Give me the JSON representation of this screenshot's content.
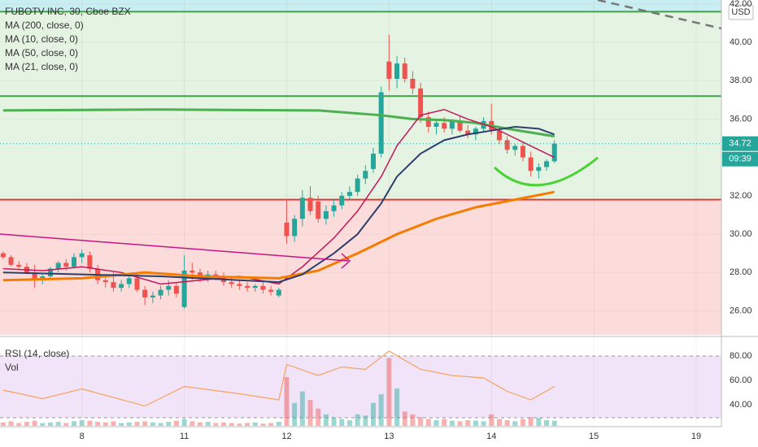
{
  "chart_data": {
    "type": "candlestick",
    "title": "FUBOTV INC, 30, Cboe BZX",
    "currency": "USD",
    "open": [
      29.0,
      28.8,
      28.4,
      28.3,
      28.0,
      27.6,
      27.8,
      28.2,
      28.5,
      28.3,
      28.8,
      28.9,
      28.2,
      27.6,
      27.5,
      27.2,
      27.4,
      27.7,
      27.1,
      26.7,
      26.8,
      27.1,
      27.3,
      26.2,
      28.1,
      28.0,
      27.7,
      27.9,
      27.8,
      27.5,
      27.4,
      27.3,
      27.2,
      27.3,
      27.1,
      26.8,
      30.6,
      29.9,
      30.8,
      31.9,
      31.7,
      30.8,
      31.2,
      31.5,
      32.0,
      32.2,
      32.9,
      33.4,
      34.2,
      39.0,
      38.1,
      38.9,
      38.1,
      37.6,
      36.1,
      35.6,
      35.8,
      35.5,
      35.9,
      35.4,
      35.2,
      35.5,
      35.9,
      35.4,
      34.9,
      34.4,
      34.6,
      34.0,
      33.3,
      33.5,
      33.8
    ],
    "high": [
      29.1,
      28.9,
      28.6,
      28.5,
      28.4,
      27.9,
      28.3,
      28.6,
      28.7,
      29.0,
      29.2,
      29.1,
      28.4,
      27.9,
      28.0,
      27.6,
      27.9,
      27.9,
      27.3,
      27.0,
      27.3,
      27.6,
      27.5,
      28.9,
      28.5,
      28.2,
      28.1,
      28.1,
      28.0,
      27.7,
      27.6,
      27.5,
      27.4,
      27.5,
      27.3,
      27.2,
      31.8,
      31.0,
      32.3,
      32.5,
      32.0,
      31.5,
      31.8,
      32.2,
      32.5,
      33.1,
      33.6,
      34.5,
      37.7,
      40.4,
      39.3,
      39.2,
      38.5,
      37.9,
      36.4,
      36.0,
      36.1,
      36.0,
      36.2,
      35.7,
      35.6,
      36.1,
      36.8,
      35.6,
      35.1,
      34.7,
      34.8,
      34.3,
      33.7,
      33.9,
      34.9
    ],
    "low": [
      28.7,
      28.3,
      28.2,
      27.9,
      27.2,
      27.4,
      27.7,
      28.0,
      28.1,
      28.2,
      28.5,
      28.0,
      27.4,
      27.2,
      27.0,
      27.0,
      27.2,
      27.0,
      26.3,
      26.4,
      26.6,
      26.8,
      26.7,
      26.1,
      27.6,
      27.5,
      27.5,
      27.6,
      27.3,
      27.2,
      27.1,
      27.0,
      27.0,
      26.9,
      26.8,
      26.7,
      29.5,
      29.6,
      30.4,
      31.0,
      30.6,
      30.5,
      30.9,
      31.3,
      31.8,
      32.0,
      32.6,
      33.2,
      34.0,
      37.5,
      37.6,
      37.9,
      37.3,
      35.8,
      35.3,
      35.2,
      35.3,
      35.2,
      35.3,
      35.0,
      34.9,
      35.3,
      35.2,
      34.7,
      34.2,
      34.1,
      33.8,
      33.0,
      32.9,
      33.3,
      33.7
    ],
    "close": [
      28.8,
      28.4,
      28.3,
      28.0,
      27.6,
      27.8,
      28.2,
      28.5,
      28.3,
      28.8,
      29.0,
      28.2,
      27.6,
      27.5,
      27.2,
      27.4,
      27.7,
      27.1,
      26.7,
      26.8,
      27.1,
      27.3,
      26.9,
      28.1,
      28.0,
      27.7,
      27.9,
      27.8,
      27.5,
      27.4,
      27.3,
      27.2,
      27.3,
      27.1,
      27.0,
      27.1,
      29.9,
      30.8,
      31.9,
      31.2,
      30.8,
      31.2,
      31.5,
      32.0,
      32.2,
      32.9,
      33.3,
      34.2,
      37.4,
      38.1,
      38.9,
      38.1,
      37.6,
      36.1,
      35.6,
      35.8,
      35.5,
      35.9,
      35.4,
      35.2,
      35.5,
      35.9,
      35.4,
      34.9,
      34.4,
      34.6,
      34.0,
      33.3,
      33.5,
      33.8,
      34.72
    ],
    "up_color": "#26a69a",
    "down_color": "#ef5350",
    "xlim": [
      -0.4,
      91.2
    ],
    "xticks": [
      {
        "value": 10,
        "label": "8"
      },
      {
        "value": 23,
        "label": "11"
      },
      {
        "value": 36,
        "label": "12"
      },
      {
        "value": 49,
        "label": "13"
      },
      {
        "value": 62,
        "label": "14"
      },
      {
        "value": 75,
        "label": "15"
      },
      {
        "value": 88,
        "label": "19"
      }
    ],
    "ylim": [
      24.75,
      42.21
    ],
    "yticks": [
      {
        "value": 26,
        "label": "26.00"
      },
      {
        "value": 28,
        "label": "28.00"
      },
      {
        "value": 30,
        "label": "30.00"
      },
      {
        "value": 32,
        "label": "32.00"
      },
      {
        "value": 36,
        "label": "36.00"
      },
      {
        "value": 38,
        "label": "38.00"
      },
      {
        "value": 40,
        "label": "40.00"
      },
      {
        "value": 42,
        "label": "42.00"
      }
    ],
    "series": [
      {
        "name": "MA (200, close, 0)",
        "color": "#4caf50",
        "width": 3,
        "x": [
          0,
          20,
          40,
          48,
          52,
          56,
          60,
          64,
          70
        ],
        "values": [
          36.45,
          36.5,
          36.45,
          36.2,
          36.0,
          35.95,
          35.8,
          35.5,
          35.1
        ]
      },
      {
        "name": "MA (10, close, 0)",
        "color": "#c2185b",
        "width": 1.5,
        "x": [
          0,
          5,
          10,
          15,
          20,
          25,
          30,
          35,
          38,
          42,
          45,
          48,
          50,
          53,
          56,
          59,
          62,
          65,
          68,
          70
        ],
        "values": [
          28.2,
          28.1,
          28.3,
          28.0,
          27.4,
          27.6,
          27.8,
          27.4,
          28.3,
          29.8,
          31.2,
          33.0,
          34.6,
          36.2,
          36.5,
          36.0,
          35.6,
          35.0,
          34.4,
          34.0
        ]
      },
      {
        "name": "MA (50, close, 0)",
        "color": "#f57c00",
        "width": 3,
        "x": [
          0,
          10,
          18,
          25,
          35,
          40,
          45,
          50,
          55,
          60,
          65,
          70
        ],
        "values": [
          27.6,
          27.7,
          28.0,
          27.8,
          27.7,
          28.1,
          29.0,
          30.0,
          30.8,
          31.4,
          31.8,
          32.2
        ]
      },
      {
        "name": "MA (21, close, 0)",
        "color": "#2c3e6b",
        "width": 2,
        "x": [
          0,
          10,
          20,
          30,
          35,
          38,
          42,
          45,
          48,
          50,
          53,
          56,
          59,
          62,
          65,
          68,
          70
        ],
        "values": [
          28.0,
          27.9,
          27.8,
          27.6,
          27.5,
          27.9,
          29.0,
          30.0,
          31.6,
          33.0,
          34.2,
          34.9,
          35.2,
          35.4,
          35.6,
          35.5,
          35.2
        ]
      }
    ],
    "levels": [
      {
        "value": 41.6,
        "color": "#43a047"
      },
      {
        "value": 37.2,
        "color": "#43a047"
      },
      {
        "value": 31.8,
        "color": "#e53935"
      }
    ],
    "last_price": 34.72,
    "countdown": "09:39",
    "rsi": {
      "name": "RSI (14, close)",
      "color": "#f5a25d",
      "ylim": [
        22.7,
        93.3
      ],
      "yticks": [
        {
          "value": 40,
          "label": "40.00"
        },
        {
          "value": 60,
          "label": "60.00"
        },
        {
          "value": 80,
          "label": "80.00"
        }
      ],
      "x": [
        0,
        5,
        10,
        18,
        23,
        30,
        35,
        36,
        40,
        43,
        46,
        49,
        53,
        57,
        61,
        64,
        67,
        70
      ],
      "values": [
        52,
        45,
        53,
        39,
        55,
        49,
        44,
        73,
        64,
        71,
        69,
        84,
        69,
        64,
        62,
        51,
        44,
        55
      ]
    },
    "volume": {
      "name": "Vol",
      "ylim": [
        0,
        150
      ],
      "values": [
        6,
        8,
        5,
        7,
        9,
        5,
        6,
        7,
        5,
        8,
        10,
        9,
        7,
        6,
        8,
        5,
        6,
        7,
        8,
        6,
        5,
        7,
        9,
        12,
        8,
        6,
        7,
        5,
        6,
        5,
        4,
        5,
        6,
        4,
        5,
        7,
        85,
        40,
        60,
        45,
        30,
        20,
        15,
        12,
        10,
        20,
        18,
        40,
        55,
        118,
        65,
        25,
        20,
        15,
        12,
        10,
        12,
        9,
        8,
        10,
        9,
        8,
        20,
        12,
        10,
        8,
        12,
        15,
        14,
        10,
        9
      ]
    }
  }
}
